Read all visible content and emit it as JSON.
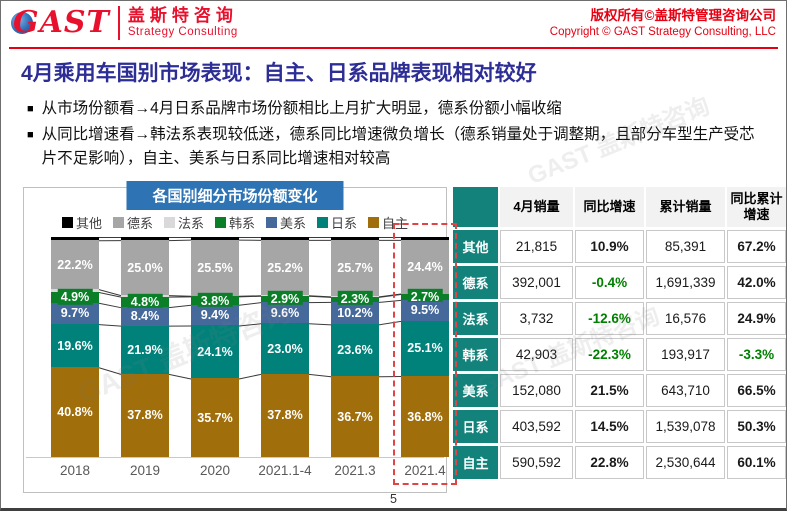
{
  "header": {
    "logo_acronym": "GAST",
    "logo_cn": "盖斯特咨询",
    "logo_en": "Strategy Consulting",
    "copyright_cn": "版权所有©盖斯特管理咨询公司",
    "copyright_en": "Copyright © GAST Strategy Consulting, LLC"
  },
  "title": "4月乘用车国别市场表现：自主、日系品牌表现相对较好",
  "bullet_char": "■",
  "bullets": [
    "从市场份额看→4月日系品牌市场份额相比上月扩大明显，德系份额小幅收缩",
    "从同比增速看→韩法系表现较低迷，德系同比增速微负增长（德系销量处于调整期，且部分车型生产受芯片不足影响），自主、美系与日系同比增速相对较高"
  ],
  "chart_data": {
    "type": "bar",
    "stacked": true,
    "percent": true,
    "title": "各国别细分市场份额变化",
    "legend_position": "top",
    "ylim": [
      0,
      100
    ],
    "categories": [
      "2018",
      "2019",
      "2020",
      "2021.1-4",
      "2021.3",
      "2021.4"
    ],
    "series": [
      {
        "name": "其他",
        "color": "#000000",
        "labeled": false,
        "values": [
          1.5,
          1.4,
          1.2,
          1.3,
          1.3,
          1.3
        ]
      },
      {
        "name": "德系",
        "color": "#a6a6a6",
        "labeled": true,
        "values": [
          22.2,
          25.0,
          25.5,
          25.2,
          25.7,
          24.4
        ]
      },
      {
        "name": "法系",
        "color": "#d9d9d9",
        "labeled": false,
        "values": [
          1.3,
          0.7,
          0.3,
          0.2,
          0.2,
          0.2
        ]
      },
      {
        "name": "韩系",
        "color": "#0b7e28",
        "labeled": true,
        "values": [
          4.9,
          4.8,
          3.8,
          2.9,
          2.3,
          2.7
        ]
      },
      {
        "name": "美系",
        "color": "#46699b",
        "labeled": true,
        "values": [
          9.7,
          8.4,
          9.4,
          9.6,
          10.2,
          9.5
        ]
      },
      {
        "name": "日系",
        "color": "#00827b",
        "labeled": true,
        "values": [
          19.6,
          21.9,
          24.1,
          23.0,
          23.6,
          25.1
        ]
      },
      {
        "name": "自主",
        "color": "#a06e0a",
        "labeled": true,
        "values": [
          40.8,
          37.8,
          35.7,
          37.8,
          36.7,
          36.8
        ]
      }
    ],
    "highlight_category": "2021.4"
  },
  "table": {
    "headers": [
      "",
      "4月销量",
      "同比增速",
      "累计销量",
      "同比累计增速"
    ],
    "rows": [
      {
        "label": "其他",
        "values": [
          "21,815",
          "10.9%",
          "85,391",
          "67.2%"
        ],
        "neg": [
          false,
          false,
          false,
          false
        ]
      },
      {
        "label": "德系",
        "values": [
          "392,001",
          "-0.4%",
          "1,691,339",
          "42.0%"
        ],
        "neg": [
          false,
          true,
          false,
          false
        ]
      },
      {
        "label": "法系",
        "values": [
          "3,732",
          "-12.6%",
          "16,576",
          "24.9%"
        ],
        "neg": [
          false,
          true,
          false,
          false
        ]
      },
      {
        "label": "韩系",
        "values": [
          "42,903",
          "-22.3%",
          "193,917",
          "-3.3%"
        ],
        "neg": [
          false,
          true,
          false,
          true
        ]
      },
      {
        "label": "美系",
        "values": [
          "152,080",
          "21.5%",
          "643,710",
          "66.5%"
        ],
        "neg": [
          false,
          false,
          false,
          false
        ]
      },
      {
        "label": "日系",
        "values": [
          "403,592",
          "14.5%",
          "1,539,078",
          "50.3%"
        ],
        "neg": [
          false,
          false,
          false,
          false
        ]
      },
      {
        "label": "自主",
        "values": [
          "590,592",
          "22.8%",
          "2,530,644",
          "60.1%"
        ],
        "neg": [
          false,
          false,
          false,
          false
        ]
      }
    ]
  },
  "footer": {
    "page_number": "5"
  },
  "watermark": "GAST 盖斯特咨询"
}
